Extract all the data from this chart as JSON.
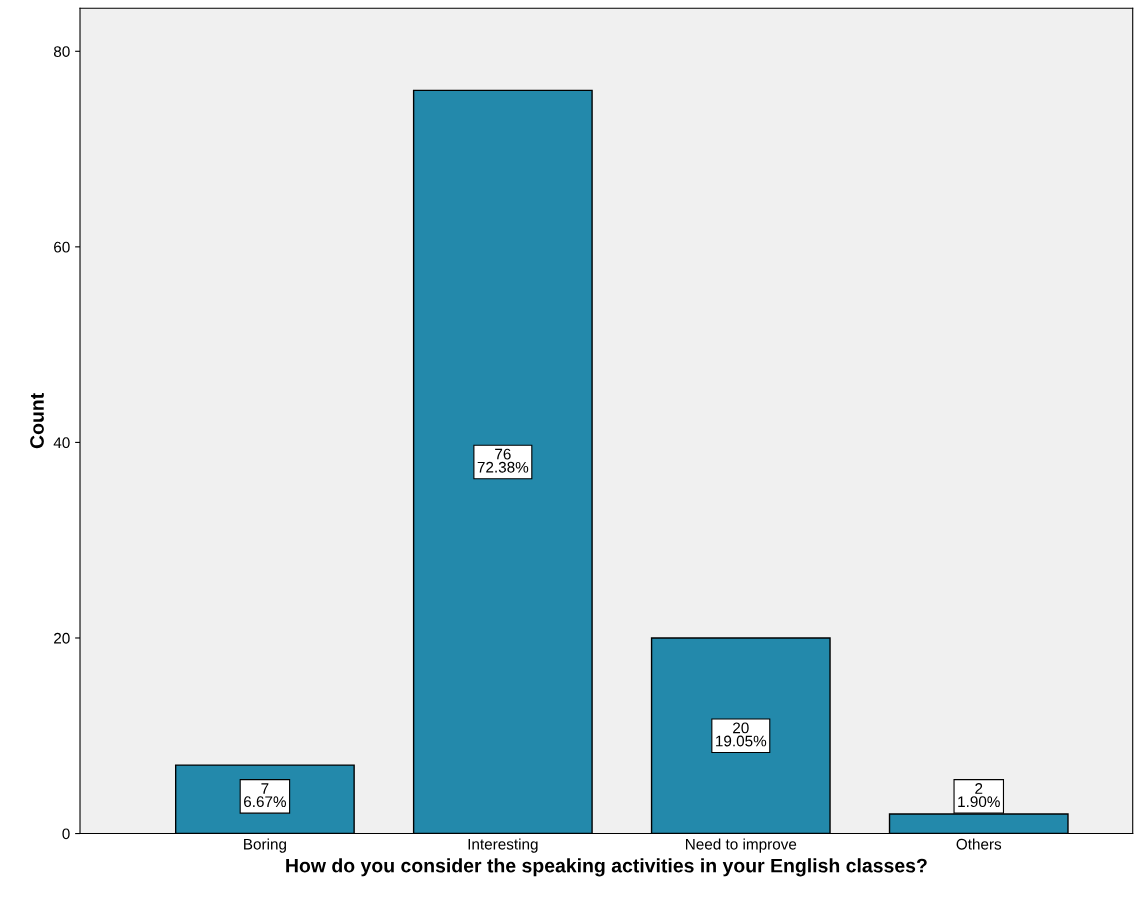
{
  "chart_data": {
    "type": "bar",
    "xlabel": "How do you consider the speaking activities in your English classes?",
    "ylabel": "Count",
    "categories": [
      "Boring",
      "Interesting",
      "Need to improve",
      "Others"
    ],
    "values": [
      7,
      76,
      20,
      2
    ],
    "value_labels": [
      "7\n6.67%",
      "76\n72.38%",
      "20\n19.05%",
      "2\n1.90%"
    ],
    "color": "#2389ab",
    "ylim": [
      0,
      84.4
    ],
    "yticks": [
      0,
      20,
      40,
      60,
      80
    ],
    "grid": false
  }
}
